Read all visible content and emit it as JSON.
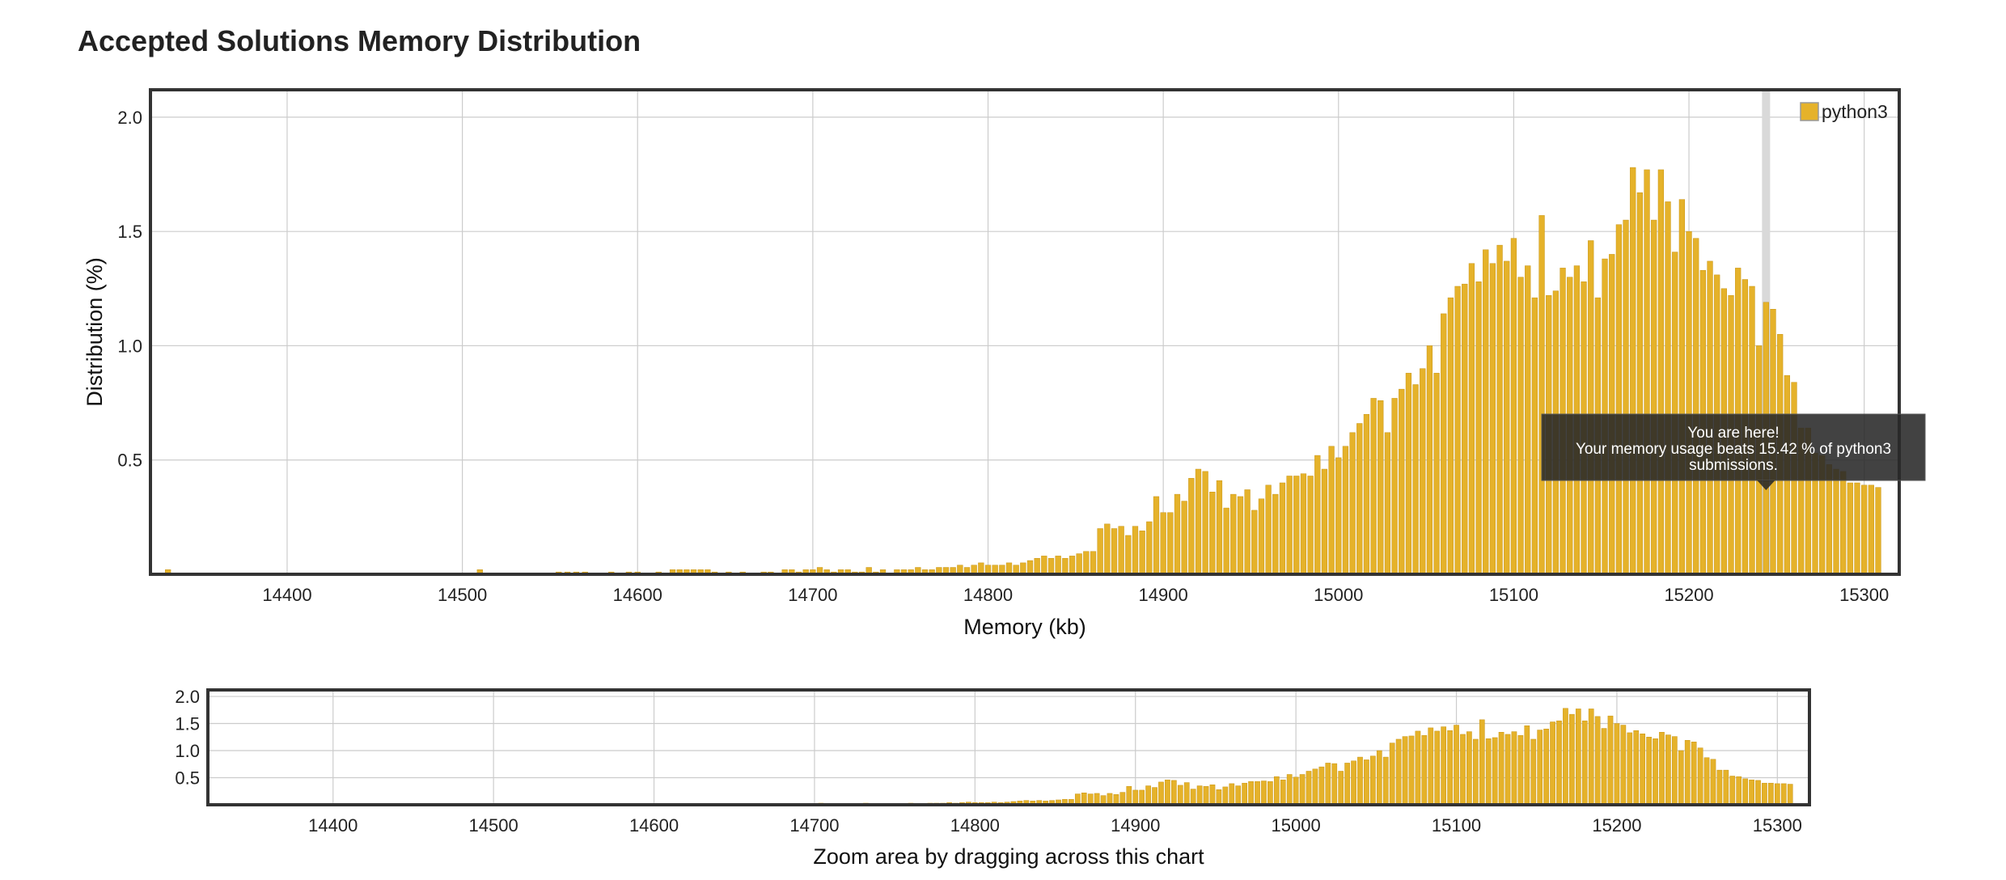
{
  "title": "Accepted Solutions Memory Distribution",
  "colors": {
    "bar": "#e5b22a",
    "bar_edge": "#c89414",
    "grid": "#cccccc",
    "frame": "#333333",
    "highlight": "#d9d9d9"
  },
  "chart_data": [
    {
      "type": "bar",
      "role": "main",
      "series": [
        {
          "name": "python3"
        }
      ],
      "xlabel": "Memory (kb)",
      "ylabel": "Distribution (%)",
      "xlim": [
        14322,
        15320
      ],
      "ylim": [
        0,
        2.12
      ],
      "x_ticks": [
        14400,
        14500,
        14600,
        14700,
        14800,
        14900,
        15000,
        15100,
        15200,
        15300
      ],
      "y_ticks": [
        0.5,
        1.0,
        1.5,
        2.0
      ],
      "y_tick_labels": [
        "0.5",
        "1.0",
        "1.5",
        "2.0"
      ],
      "grid": true,
      "legend": "top-right",
      "highlight_x": 15244,
      "tooltip": {
        "line1": "You are here!",
        "line2": "Your memory usage beats 15.42 % of python3",
        "line3": "submissions."
      },
      "bars": [
        [
          14332,
          0.02
        ],
        [
          14510,
          0.02
        ],
        [
          14555,
          0.01
        ],
        [
          14560,
          0.01
        ],
        [
          14565,
          0.01
        ],
        [
          14570,
          0.01
        ],
        [
          14585,
          0.01
        ],
        [
          14595,
          0.01
        ],
        [
          14600,
          0.01
        ],
        [
          14612,
          0.01
        ],
        [
          14620,
          0.02
        ],
        [
          14624,
          0.02
        ],
        [
          14628,
          0.02
        ],
        [
          14632,
          0.02
        ],
        [
          14636,
          0.02
        ],
        [
          14640,
          0.02
        ],
        [
          14644,
          0.01
        ],
        [
          14652,
          0.01
        ],
        [
          14660,
          0.01
        ],
        [
          14672,
          0.01
        ],
        [
          14676,
          0.01
        ],
        [
          14684,
          0.02
        ],
        [
          14688,
          0.02
        ],
        [
          14692,
          0.01
        ],
        [
          14696,
          0.02
        ],
        [
          14700,
          0.02
        ],
        [
          14704,
          0.03
        ],
        [
          14708,
          0.02
        ],
        [
          14712,
          0.01
        ],
        [
          14716,
          0.02
        ],
        [
          14720,
          0.02
        ],
        [
          14724,
          0.01
        ],
        [
          14728,
          0.01
        ],
        [
          14732,
          0.03
        ],
        [
          14736,
          0.01
        ],
        [
          14740,
          0.02
        ],
        [
          14748,
          0.02
        ],
        [
          14752,
          0.02
        ],
        [
          14756,
          0.02
        ],
        [
          14760,
          0.03
        ],
        [
          14764,
          0.02
        ],
        [
          14768,
          0.02
        ],
        [
          14772,
          0.03
        ],
        [
          14776,
          0.03
        ],
        [
          14780,
          0.03
        ],
        [
          14784,
          0.04
        ],
        [
          14788,
          0.03
        ],
        [
          14792,
          0.04
        ],
        [
          14796,
          0.05
        ],
        [
          14800,
          0.04
        ],
        [
          14804,
          0.04
        ],
        [
          14808,
          0.04
        ],
        [
          14812,
          0.05
        ],
        [
          14816,
          0.04
        ],
        [
          14820,
          0.05
        ],
        [
          14824,
          0.06
        ],
        [
          14828,
          0.07
        ],
        [
          14832,
          0.08
        ],
        [
          14836,
          0.07
        ],
        [
          14840,
          0.08
        ],
        [
          14844,
          0.07
        ],
        [
          14848,
          0.08
        ],
        [
          14852,
          0.09
        ],
        [
          14856,
          0.1
        ],
        [
          14860,
          0.1
        ],
        [
          14864,
          0.2
        ],
        [
          14868,
          0.22
        ],
        [
          14872,
          0.2
        ],
        [
          14876,
          0.21
        ],
        [
          14880,
          0.17
        ],
        [
          14884,
          0.21
        ],
        [
          14888,
          0.19
        ],
        [
          14892,
          0.23
        ],
        [
          14896,
          0.34
        ],
        [
          14900,
          0.27
        ],
        [
          14904,
          0.27
        ],
        [
          14908,
          0.35
        ],
        [
          14912,
          0.32
        ],
        [
          14916,
          0.42
        ],
        [
          14920,
          0.46
        ],
        [
          14924,
          0.45
        ],
        [
          14928,
          0.36
        ],
        [
          14932,
          0.41
        ],
        [
          14936,
          0.29
        ],
        [
          14940,
          0.35
        ],
        [
          14944,
          0.34
        ],
        [
          14948,
          0.37
        ],
        [
          14952,
          0.28
        ],
        [
          14956,
          0.33
        ],
        [
          14960,
          0.39
        ],
        [
          14964,
          0.35
        ],
        [
          14968,
          0.4
        ],
        [
          14972,
          0.43
        ],
        [
          14976,
          0.43
        ],
        [
          14980,
          0.44
        ],
        [
          14984,
          0.43
        ],
        [
          14988,
          0.52
        ],
        [
          14992,
          0.46
        ],
        [
          14996,
          0.56
        ],
        [
          15000,
          0.51
        ],
        [
          15004,
          0.56
        ],
        [
          15008,
          0.62
        ],
        [
          15012,
          0.66
        ],
        [
          15016,
          0.7
        ],
        [
          15020,
          0.77
        ],
        [
          15024,
          0.76
        ],
        [
          15028,
          0.62
        ],
        [
          15032,
          0.77
        ],
        [
          15036,
          0.81
        ],
        [
          15040,
          0.88
        ],
        [
          15044,
          0.83
        ],
        [
          15048,
          0.9
        ],
        [
          15052,
          1.0
        ],
        [
          15056,
          0.88
        ],
        [
          15060,
          1.14
        ],
        [
          15064,
          1.21
        ],
        [
          15068,
          1.26
        ],
        [
          15072,
          1.27
        ],
        [
          15076,
          1.36
        ],
        [
          15080,
          1.28
        ],
        [
          15084,
          1.42
        ],
        [
          15088,
          1.36
        ],
        [
          15092,
          1.44
        ],
        [
          15096,
          1.37
        ],
        [
          15100,
          1.47
        ],
        [
          15104,
          1.3
        ],
        [
          15108,
          1.35
        ],
        [
          15112,
          1.21
        ],
        [
          15116,
          1.57
        ],
        [
          15120,
          1.22
        ],
        [
          15124,
          1.24
        ],
        [
          15128,
          1.34
        ],
        [
          15132,
          1.3
        ],
        [
          15136,
          1.35
        ],
        [
          15140,
          1.28
        ],
        [
          15144,
          1.46
        ],
        [
          15148,
          1.21
        ],
        [
          15152,
          1.38
        ],
        [
          15156,
          1.4
        ],
        [
          15160,
          1.53
        ],
        [
          15164,
          1.55
        ],
        [
          15168,
          1.78
        ],
        [
          15172,
          1.67
        ],
        [
          15176,
          1.77
        ],
        [
          15180,
          1.55
        ],
        [
          15184,
          1.77
        ],
        [
          15188,
          1.63
        ],
        [
          15192,
          1.41
        ],
        [
          15196,
          1.64
        ],
        [
          15200,
          1.5
        ],
        [
          15204,
          1.47
        ],
        [
          15208,
          1.33
        ],
        [
          15212,
          1.37
        ],
        [
          15216,
          1.31
        ],
        [
          15220,
          1.25
        ],
        [
          15224,
          1.22
        ],
        [
          15228,
          1.34
        ],
        [
          15232,
          1.29
        ],
        [
          15236,
          1.26
        ],
        [
          15240,
          1.0
        ],
        [
          15244,
          1.19
        ],
        [
          15248,
          1.16
        ],
        [
          15252,
          1.05
        ],
        [
          15256,
          0.87
        ],
        [
          15260,
          0.84
        ],
        [
          15264,
          0.64
        ],
        [
          15268,
          0.64
        ],
        [
          15272,
          0.53
        ],
        [
          15276,
          0.52
        ],
        [
          15280,
          0.48
        ],
        [
          15284,
          0.46
        ],
        [
          15288,
          0.45
        ],
        [
          15292,
          0.4
        ],
        [
          15296,
          0.4
        ],
        [
          15300,
          0.39
        ],
        [
          15304,
          0.39
        ],
        [
          15308,
          0.38
        ]
      ]
    },
    {
      "type": "bar",
      "role": "navigator",
      "series": [
        {
          "name": "python3"
        }
      ],
      "xlabel": "Zoom area by dragging across this chart",
      "xlim": [
        14322,
        15320
      ],
      "ylim": [
        0,
        2.12
      ],
      "x_ticks": [
        14400,
        14500,
        14600,
        14700,
        14800,
        14900,
        15000,
        15100,
        15200,
        15300
      ],
      "y_ticks": [
        0.5,
        1.0,
        1.5,
        2.0
      ],
      "y_tick_labels": [
        "0.5",
        "1.0",
        "1.5",
        "2.0"
      ],
      "grid": true,
      "bars_same_as": "main"
    }
  ]
}
